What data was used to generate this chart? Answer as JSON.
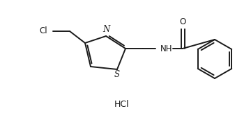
{
  "bg_color": "#ffffff",
  "line_color": "#1a1a1a",
  "line_width": 1.4,
  "font_size": 8.5,
  "label_HCl": "HCl",
  "label_Cl": "Cl",
  "label_N": "N",
  "label_S": "S",
  "label_NH": "NH",
  "label_O": "O",
  "figsize": [
    3.6,
    1.73
  ],
  "dpi": 100
}
